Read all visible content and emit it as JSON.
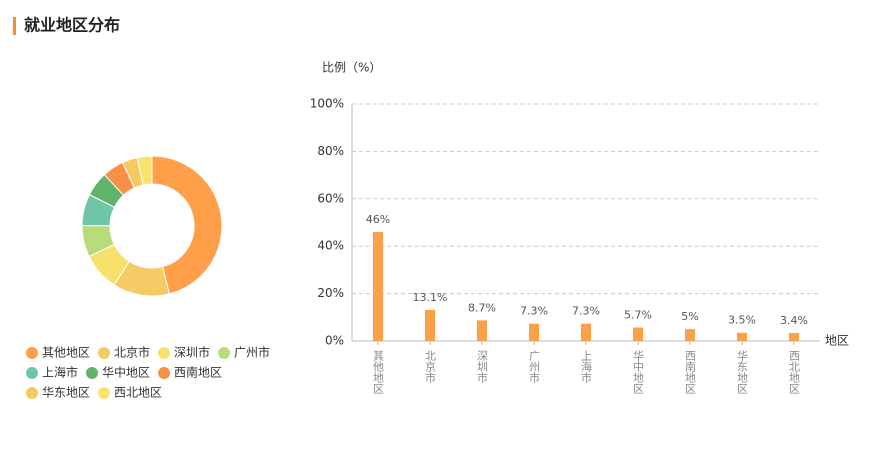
{
  "header": {
    "title": "就业地区分布"
  },
  "chart_data": [
    {
      "type": "donut",
      "categories": [
        "其他地区",
        "北京市",
        "深圳市",
        "广州市",
        "上海市",
        "华中地区",
        "西南地区",
        "华东地区",
        "西北地区"
      ],
      "values": [
        46,
        13.1,
        8.7,
        7.3,
        7.3,
        5.7,
        5,
        3.5,
        3.4
      ],
      "colors": [
        "#ff9f4a",
        "#f5cb66",
        "#f8e16b",
        "#b8dc7c",
        "#6fc6a6",
        "#5fb46a",
        "#f89048",
        "#f5c95e",
        "#f8e36e"
      ]
    },
    {
      "type": "bar",
      "y_label": "比例（%）",
      "x_label": "地区",
      "categories": [
        "其他地区",
        "北京市",
        "深圳市",
        "广州市",
        "上海市",
        "华中地区",
        "西南地区",
        "华东地区",
        "西北地区"
      ],
      "values": [
        46,
        13.1,
        8.7,
        7.3,
        7.3,
        5.7,
        5,
        3.5,
        3.4
      ],
      "value_labels": [
        "46%",
        "13.1%",
        "8.7%",
        "7.3%",
        "7.3%",
        "5.7%",
        "5%",
        "3.5%",
        "3.4%"
      ],
      "color": "#ff9f4a",
      "ylim": [
        0,
        100
      ],
      "yticks": [
        {
          "value": 0,
          "label": "0%"
        },
        {
          "value": 20,
          "label": "20%"
        },
        {
          "value": 40,
          "label": "40%"
        },
        {
          "value": 60,
          "label": "60%"
        },
        {
          "value": 80,
          "label": "80%"
        },
        {
          "value": 100,
          "label": "100%"
        }
      ],
      "grid": true
    }
  ]
}
